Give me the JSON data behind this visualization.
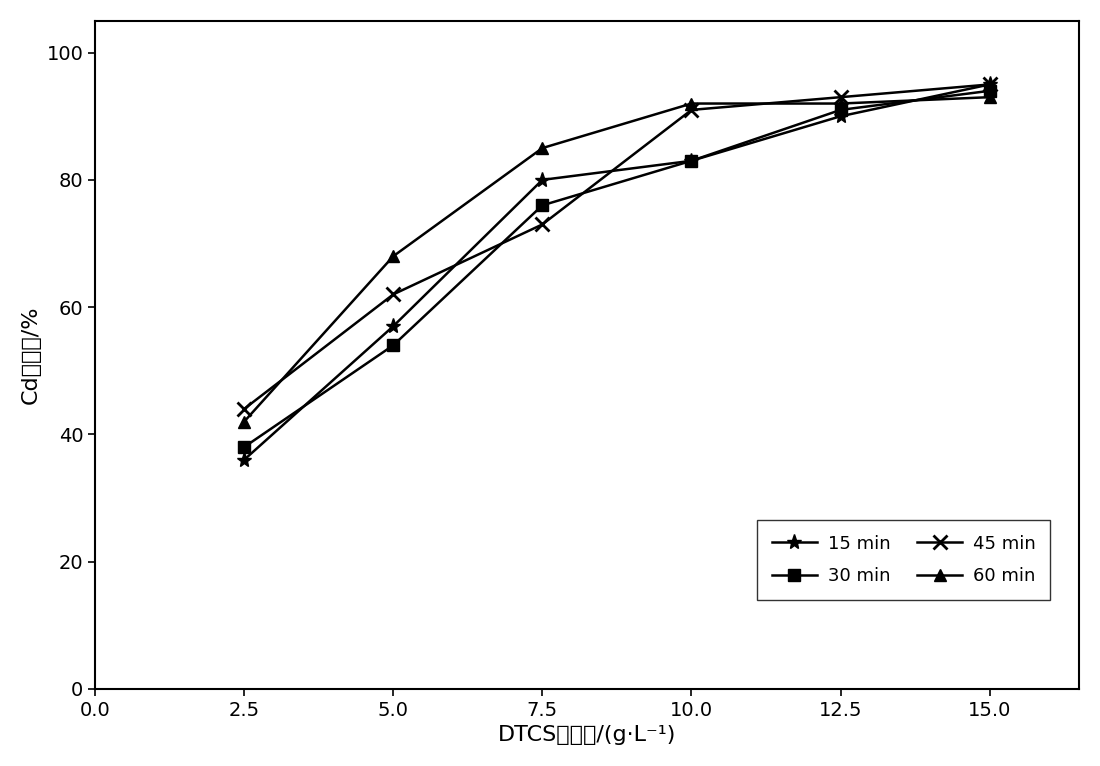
{
  "x": [
    2.5,
    5.0,
    7.5,
    10.0,
    12.5,
    15.0
  ],
  "series_15": [
    36,
    57,
    80,
    83,
    90,
    95
  ],
  "series_30": [
    38,
    54,
    76,
    83,
    91,
    94
  ],
  "series_45": [
    44,
    62,
    73,
    91,
    93,
    95
  ],
  "series_60": [
    42,
    68,
    85,
    92,
    92,
    93
  ],
  "xlabel": "DTCS投加量/(g·L⁻¹)",
  "ylabel": "Cd去除率/%",
  "xlim_left": 1.5,
  "xlim_right": 16.5,
  "ylim_bottom": 0,
  "ylim_top": 105,
  "xticks": [
    0.0,
    2.5,
    5.0,
    7.5,
    10.0,
    12.5,
    15.0
  ],
  "yticks": [
    0,
    20,
    40,
    60,
    80,
    100
  ],
  "xtick_labels": [
    "0.0",
    "2.5",
    "5.0",
    "7.5",
    "10.0",
    "12.5",
    "15.0"
  ],
  "ytick_labels": [
    "0",
    "20",
    "40",
    "60",
    "80",
    "100"
  ],
  "color": "#000000",
  "linewidth": 1.8,
  "fontsize_label": 16,
  "fontsize_tick": 14,
  "fontsize_legend": 13,
  "background_color": "#ffffff"
}
